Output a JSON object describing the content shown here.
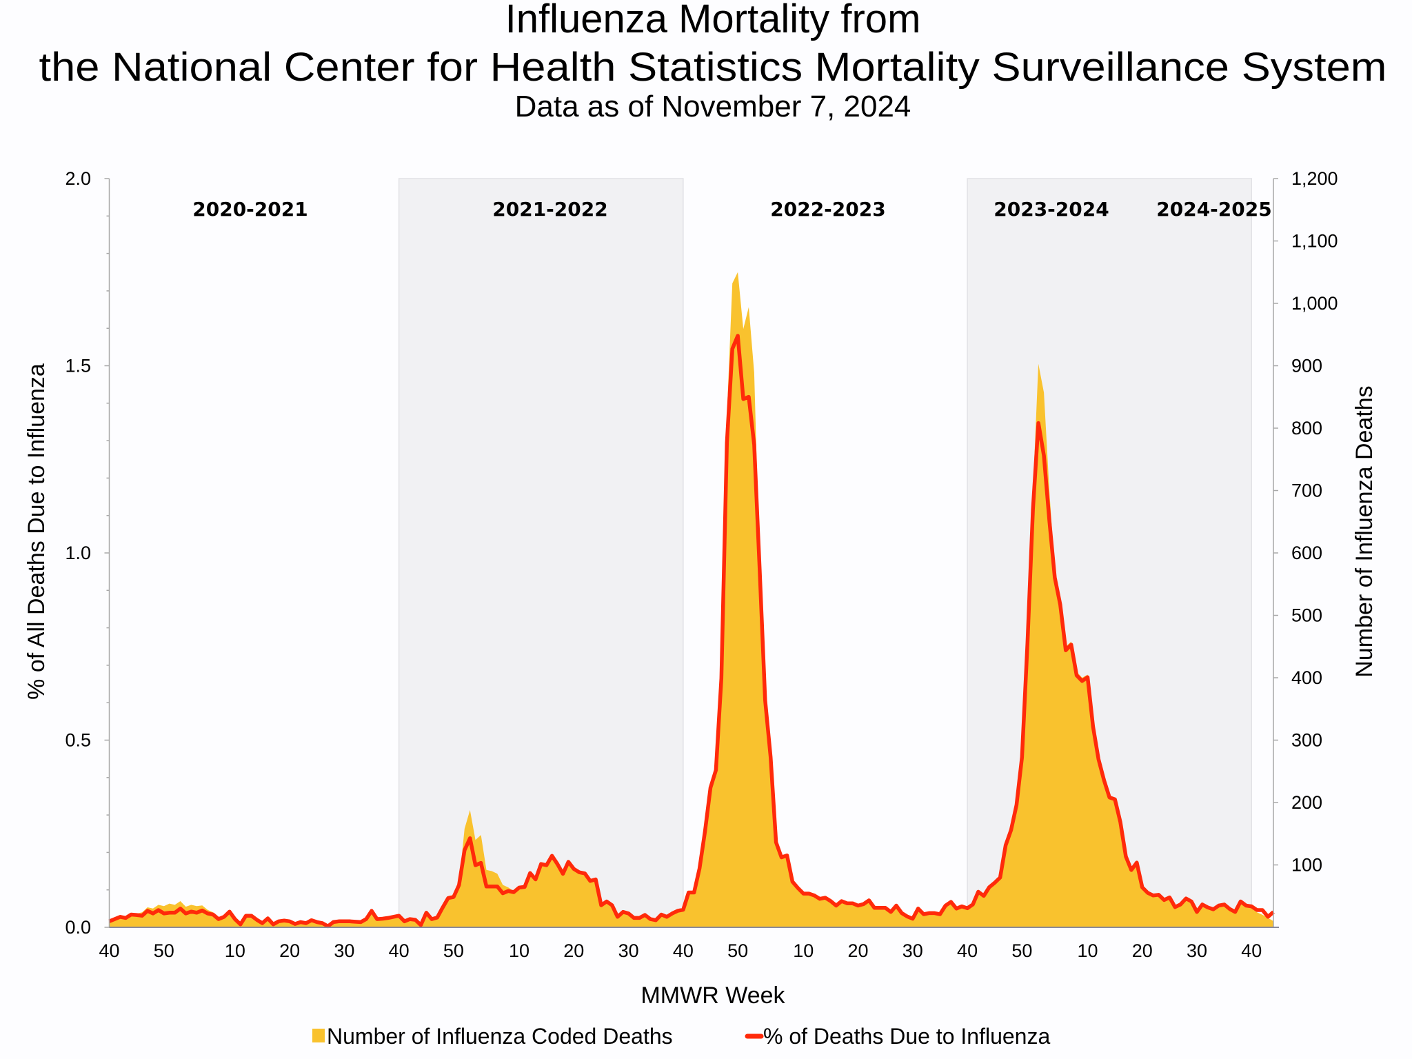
{
  "chart_data": {
    "type": "area+line",
    "title_line1": "Influenza Mortality from",
    "title_line2": "the National Center for Health Statistics Mortality Surveillance System",
    "subtitle": "Data as of November 7, 2024",
    "xlabel": "MMWR Week",
    "ylabel_left": "% of All Deaths Due to Influenza",
    "ylabel_right": "Number of Influenza Deaths",
    "ylim_left": [
      0,
      2.0
    ],
    "ylim_right": [
      0,
      1200
    ],
    "left_ticks": [
      "0.0",
      "0.5",
      "1.0",
      "1.5",
      "2.0"
    ],
    "left_tick_values": [
      0,
      0.5,
      1.0,
      1.5,
      2.0
    ],
    "right_ticks": [
      "100",
      "200",
      "300",
      "400",
      "500",
      "600",
      "700",
      "800",
      "900",
      "1,000",
      "1,100",
      "1,200"
    ],
    "right_tick_values": [
      100,
      200,
      300,
      400,
      500,
      600,
      700,
      800,
      900,
      1000,
      1100,
      1200
    ],
    "x_ticks": [
      {
        "label": "40",
        "week_index": 0
      },
      {
        "label": "50",
        "week_index": 10
      },
      {
        "label": "10",
        "week_index": 23
      },
      {
        "label": "20",
        "week_index": 33
      },
      {
        "label": "30",
        "week_index": 43
      },
      {
        "label": "40",
        "week_index": 53
      },
      {
        "label": "50",
        "week_index": 63
      },
      {
        "label": "10",
        "week_index": 75
      },
      {
        "label": "20",
        "week_index": 85
      },
      {
        "label": "30",
        "week_index": 95
      },
      {
        "label": "40",
        "week_index": 105
      },
      {
        "label": "50",
        "week_index": 115
      },
      {
        "label": "10",
        "week_index": 127
      },
      {
        "label": "20",
        "week_index": 137
      },
      {
        "label": "30",
        "week_index": 147
      },
      {
        "label": "40",
        "week_index": 157
      },
      {
        "label": "50",
        "week_index": 167
      },
      {
        "label": "10",
        "week_index": 179
      },
      {
        "label": "20",
        "week_index": 189
      },
      {
        "label": "30",
        "week_index": 199
      },
      {
        "label": "40",
        "week_index": 209
      }
    ],
    "seasons": [
      {
        "label": "2020-2021",
        "start_index": 0,
        "end_index": 53,
        "shaded": false
      },
      {
        "label": "2021-2022",
        "start_index": 53,
        "end_index": 105,
        "shaded": true
      },
      {
        "label": "2022-2023",
        "start_index": 105,
        "end_index": 157,
        "shaded": false
      },
      {
        "label": "2023-2024",
        "start_index": 157,
        "end_index": 209,
        "shaded": true
      },
      {
        "label": "2024-2025",
        "start_index": 209,
        "end_index": 213,
        "shaded": false
      }
    ],
    "legend": [
      {
        "label": "Number of Influenza Coded Deaths",
        "color": "#F9C22E",
        "kind": "area"
      },
      {
        "label": "% of Deaths Due to Influenza",
        "color": "#FF2A0A",
        "kind": "line"
      }
    ],
    "series": [
      {
        "name": "Number of Influenza Coded Deaths",
        "axis": "right",
        "values": [
          10,
          13,
          17,
          15,
          20,
          22,
          24,
          32,
          30,
          36,
          34,
          38,
          36,
          42,
          33,
          36,
          34,
          35,
          28,
          24,
          14,
          17,
          25,
          13,
          5,
          19,
          19,
          12,
          7,
          14,
          5,
          10,
          11,
          10,
          5,
          8,
          7,
          11,
          8,
          7,
          2,
          8,
          10,
          10,
          10,
          9,
          8,
          13,
          26,
          13,
          14,
          15,
          17,
          19,
          10,
          13,
          12,
          4,
          23,
          13,
          16,
          32,
          50,
          52,
          70,
          158,
          188,
          140,
          148,
          92,
          90,
          86,
          68,
          64,
          58,
          64,
          65,
          87,
          77,
          101,
          100,
          115,
          101,
          86,
          105,
          94,
          88,
          86,
          74,
          77,
          36,
          41,
          35,
          17,
          25,
          22,
          15,
          15,
          20,
          13,
          11,
          20,
          17,
          22,
          26,
          28,
          56,
          56,
          94,
          154,
          224,
          252,
          400,
          820,
          1032,
          1050,
          959,
          994,
          889,
          580,
          364,
          273,
          136,
          112,
          115,
          73,
          63,
          54,
          54,
          51,
          46,
          47,
          42,
          35,
          42,
          38,
          38,
          35,
          37,
          43,
          31,
          31,
          31,
          25,
          35,
          23,
          17,
          14,
          30,
          21,
          23,
          23,
          21,
          35,
          41,
          30,
          34,
          31,
          37,
          57,
          50,
          64,
          71,
          80,
          131,
          156,
          196,
          272,
          470,
          700,
          903,
          857,
          700,
          572,
          520,
          450,
          458,
          410,
          400,
          405,
          325,
          272,
          238,
          210,
          207,
          170,
          114,
          92,
          104,
          64,
          55,
          51,
          52,
          44,
          48,
          32,
          37,
          46,
          41,
          25,
          37,
          32,
          29,
          35,
          37,
          29,
          25,
          41,
          35,
          30,
          24,
          20,
          15,
          10
        ]
      },
      {
        "name": "% of Deaths Due to Influenza",
        "axis": "left",
        "values": [
          0.016,
          0.022,
          0.028,
          0.025,
          0.034,
          0.033,
          0.031,
          0.044,
          0.037,
          0.046,
          0.037,
          0.039,
          0.039,
          0.05,
          0.037,
          0.042,
          0.039,
          0.045,
          0.037,
          0.034,
          0.022,
          0.028,
          0.042,
          0.022,
          0.008,
          0.031,
          0.031,
          0.02,
          0.011,
          0.024,
          0.008,
          0.016,
          0.018,
          0.016,
          0.009,
          0.014,
          0.011,
          0.019,
          0.014,
          0.011,
          0.003,
          0.014,
          0.016,
          0.016,
          0.016,
          0.015,
          0.014,
          0.022,
          0.044,
          0.022,
          0.023,
          0.025,
          0.028,
          0.031,
          0.016,
          0.022,
          0.02,
          0.006,
          0.039,
          0.022,
          0.026,
          0.053,
          0.078,
          0.081,
          0.113,
          0.206,
          0.238,
          0.166,
          0.172,
          0.109,
          0.109,
          0.109,
          0.091,
          0.097,
          0.094,
          0.106,
          0.108,
          0.145,
          0.128,
          0.169,
          0.166,
          0.191,
          0.169,
          0.143,
          0.175,
          0.156,
          0.147,
          0.144,
          0.124,
          0.128,
          0.059,
          0.069,
          0.059,
          0.028,
          0.041,
          0.037,
          0.025,
          0.025,
          0.033,
          0.022,
          0.019,
          0.034,
          0.028,
          0.037,
          0.044,
          0.047,
          0.093,
          0.093,
          0.157,
          0.257,
          0.373,
          0.42,
          0.665,
          1.294,
          1.545,
          1.58,
          1.411,
          1.417,
          1.289,
          0.957,
          0.606,
          0.455,
          0.227,
          0.187,
          0.192,
          0.122,
          0.105,
          0.09,
          0.09,
          0.085,
          0.076,
          0.079,
          0.07,
          0.058,
          0.07,
          0.064,
          0.064,
          0.058,
          0.062,
          0.072,
          0.052,
          0.052,
          0.052,
          0.041,
          0.058,
          0.038,
          0.029,
          0.023,
          0.05,
          0.035,
          0.038,
          0.038,
          0.035,
          0.058,
          0.068,
          0.05,
          0.056,
          0.051,
          0.061,
          0.095,
          0.084,
          0.107,
          0.119,
          0.133,
          0.219,
          0.26,
          0.327,
          0.454,
          0.76,
          1.117,
          1.347,
          1.26,
          1.087,
          0.934,
          0.862,
          0.74,
          0.755,
          0.673,
          0.658,
          0.668,
          0.536,
          0.449,
          0.393,
          0.347,
          0.342,
          0.281,
          0.189,
          0.153,
          0.173,
          0.107,
          0.092,
          0.085,
          0.087,
          0.073,
          0.08,
          0.054,
          0.061,
          0.077,
          0.069,
          0.041,
          0.061,
          0.053,
          0.048,
          0.058,
          0.061,
          0.049,
          0.041,
          0.069,
          0.058,
          0.056,
          0.046,
          0.046,
          0.028,
          0.041
        ]
      }
    ],
    "grid": false,
    "legend_placement": "bottom-center"
  }
}
